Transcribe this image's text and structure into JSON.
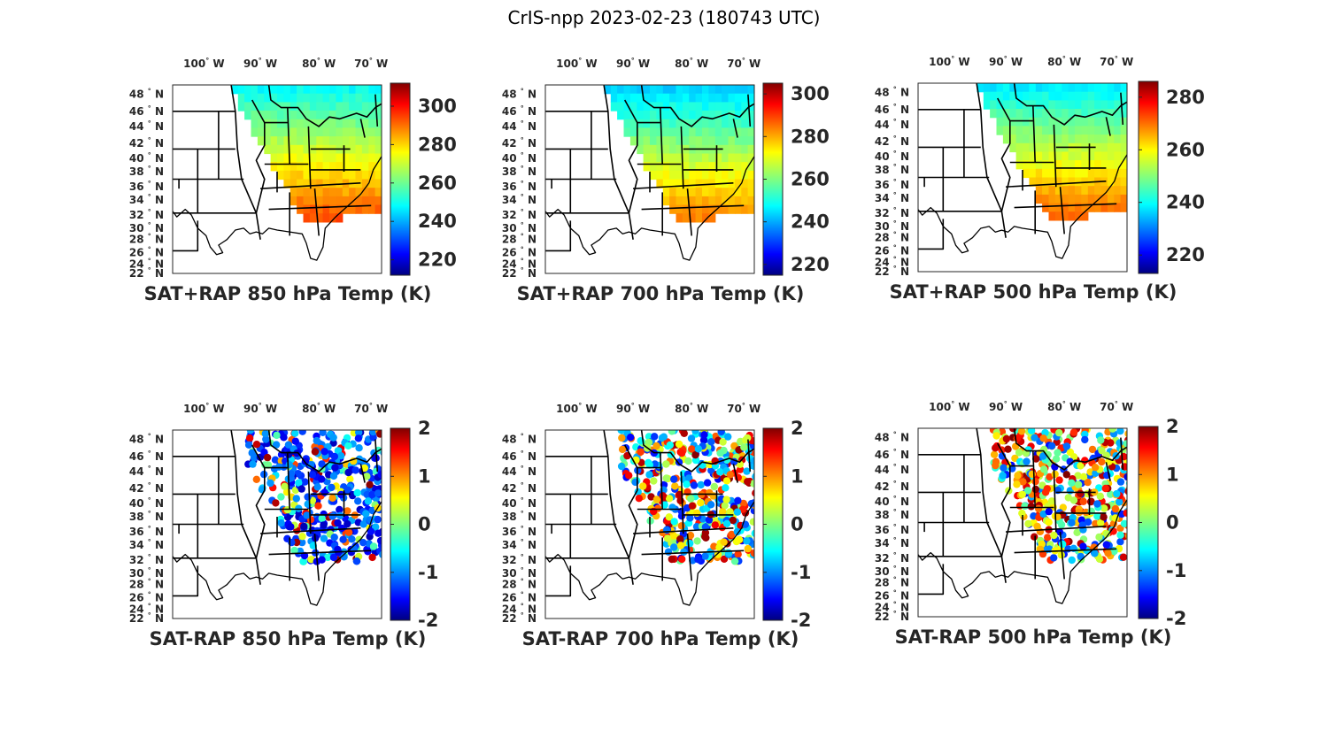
{
  "figure_title": "CrIS-npp 2023-02-23 (180743 UTC)",
  "lon_labels": [
    "100",
    "90",
    "80",
    "70"
  ],
  "lon_suffix": "W",
  "lat_labels": [
    "48",
    "46",
    "44",
    "42",
    "40",
    "38",
    "36",
    "34",
    "32",
    "30",
    "28",
    "26",
    "24",
    "22"
  ],
  "lat_suffix": "N",
  "colormap": "jet",
  "panels": [
    {
      "title": "SAT+RAP 850 hPa Temp (K)",
      "field": "total",
      "colorbar": {
        "min": 212,
        "max": 312,
        "ticks": [
          "300",
          "280",
          "260",
          "240",
          "220"
        ]
      }
    },
    {
      "title": "SAT+RAP 700 hPa Temp (K)",
      "field": "total",
      "colorbar": {
        "min": 215,
        "max": 305,
        "ticks": [
          "300",
          "280",
          "260",
          "240",
          "220"
        ]
      }
    },
    {
      "title": "SAT+RAP 500 hPa Temp (K)",
      "field": "total",
      "colorbar": {
        "min": 213,
        "max": 286,
        "ticks": [
          "280",
          "260",
          "240",
          "220"
        ]
      }
    },
    {
      "title": "SAT-RAP 850 hPa Temp (K)",
      "field": "diff",
      "colorbar": {
        "min": -2,
        "max": 2,
        "ticks": [
          "2",
          "1",
          "0",
          "-1",
          "-2"
        ]
      }
    },
    {
      "title": "SAT-RAP 700 hPa Temp (K)",
      "field": "diff",
      "colorbar": {
        "min": -2,
        "max": 2,
        "ticks": [
          "2",
          "1",
          "0",
          "-1",
          "-2"
        ]
      }
    },
    {
      "title": "SAT-RAP 500 hPa Temp (K)",
      "field": "diff",
      "colorbar": {
        "min": -2,
        "max": 2,
        "ticks": [
          "2",
          "1",
          "0",
          "-1",
          "-2"
        ]
      }
    }
  ]
}
